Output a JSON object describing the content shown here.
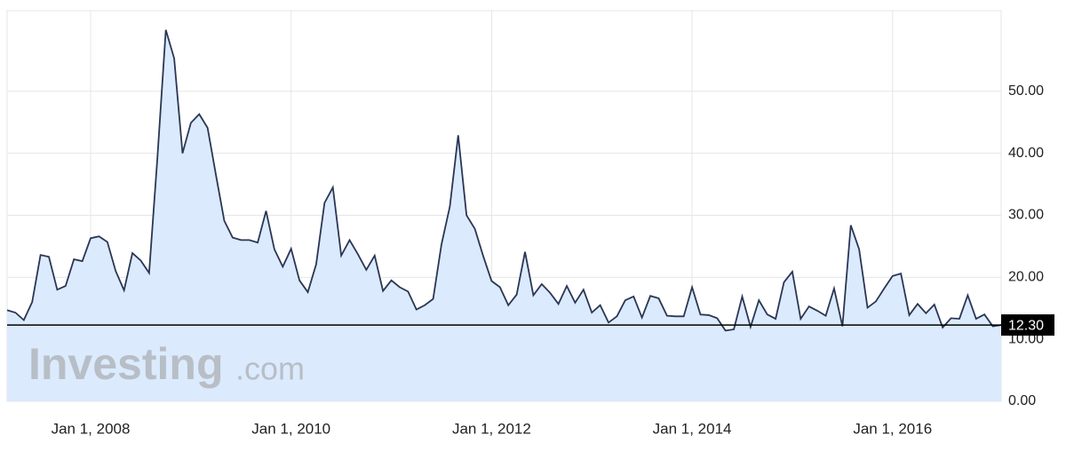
{
  "chart_data": {
    "type": "area",
    "color": "#2a3654",
    "fill": "#dbeafc",
    "grid": true,
    "watermark": [
      "Investing",
      ".com"
    ],
    "current_value": {
      "value": 12.3,
      "label": "12.30"
    },
    "xlim": [
      "2007-03",
      "2017-02"
    ],
    "xticks": [
      {
        "value": "2008-01-01",
        "label": "Jan 1, 2008"
      },
      {
        "value": "2010-01-01",
        "label": "Jan 1, 2010"
      },
      {
        "value": "2012-01-01",
        "label": "Jan 1, 2012"
      },
      {
        "value": "2014-01-01",
        "label": "Jan 1, 2014"
      },
      {
        "value": "2016-01-01",
        "label": "Jan 1, 2016"
      }
    ],
    "ylim": [
      0,
      63
    ],
    "yticks": [
      {
        "value": 0,
        "label": "0.00"
      },
      {
        "value": 10,
        "label": "10.00"
      },
      {
        "value": 20,
        "label": "20.00"
      },
      {
        "value": 30,
        "label": "30.00"
      },
      {
        "value": 40,
        "label": "40.00"
      },
      {
        "value": 50,
        "label": "50.00"
      }
    ],
    "x": [
      "2007-03",
      "2007-04",
      "2007-05",
      "2007-06",
      "2007-07",
      "2007-08",
      "2007-09",
      "2007-10",
      "2007-11",
      "2007-12",
      "2008-01",
      "2008-02",
      "2008-03",
      "2008-04",
      "2008-05",
      "2008-06",
      "2008-07",
      "2008-08",
      "2008-09",
      "2008-10",
      "2008-11",
      "2008-12",
      "2009-01",
      "2009-02",
      "2009-03",
      "2009-04",
      "2009-05",
      "2009-06",
      "2009-07",
      "2009-08",
      "2009-09",
      "2009-10",
      "2009-11",
      "2009-12",
      "2010-01",
      "2010-02",
      "2010-03",
      "2010-04",
      "2010-05",
      "2010-06",
      "2010-07",
      "2010-08",
      "2010-09",
      "2010-10",
      "2010-11",
      "2010-12",
      "2011-01",
      "2011-02",
      "2011-03",
      "2011-04",
      "2011-05",
      "2011-06",
      "2011-07",
      "2011-08",
      "2011-09",
      "2011-10",
      "2011-11",
      "2011-12",
      "2012-01",
      "2012-02",
      "2012-03",
      "2012-04",
      "2012-05",
      "2012-06",
      "2012-07",
      "2012-08",
      "2012-09",
      "2012-10",
      "2012-11",
      "2012-12",
      "2013-01",
      "2013-02",
      "2013-03",
      "2013-04",
      "2013-05",
      "2013-06",
      "2013-07",
      "2013-08",
      "2013-09",
      "2013-10",
      "2013-11",
      "2013-12",
      "2014-01",
      "2014-02",
      "2014-03",
      "2014-04",
      "2014-05",
      "2014-06",
      "2014-07",
      "2014-08",
      "2014-09",
      "2014-10",
      "2014-11",
      "2014-12",
      "2015-01",
      "2015-02",
      "2015-03",
      "2015-04",
      "2015-05",
      "2015-06",
      "2015-07",
      "2015-08",
      "2015-09",
      "2015-10",
      "2015-11",
      "2015-12",
      "2016-01",
      "2016-02",
      "2016-03",
      "2016-04",
      "2016-05",
      "2016-06",
      "2016-07",
      "2016-08",
      "2016-09",
      "2016-10",
      "2016-11",
      "2016-12",
      "2017-01",
      "2017-02"
    ],
    "values": [
      14.7,
      14.3,
      13.1,
      16,
      23.6,
      23.3,
      18,
      18.6,
      22.9,
      22.6,
      26.3,
      26.6,
      25.7,
      21,
      17.9,
      23.9,
      22.7,
      20.7,
      39.4,
      59.9,
      55.3,
      40,
      44.9,
      46.3,
      44.1,
      36.5,
      29.1,
      26.4,
      26,
      26,
      25.6,
      30.7,
      24.5,
      21.7,
      24.6,
      19.5,
      17.6,
      22.1,
      32,
      34.5,
      23.5,
      26,
      23.7,
      21.2,
      23.5,
      17.8,
      19.5,
      18.4,
      17.7,
      14.8,
      15.5,
      16.5,
      25.3,
      31.4,
      42.9,
      30,
      27.8,
      23.4,
      19.4,
      18.4,
      15.5,
      17.2,
      24.1,
      17.1,
      18.9,
      17.5,
      15.7,
      18.6,
      15.9,
      18,
      14.3,
      15.5,
      12.7,
      13.7,
      16.3,
      16.9,
      13.5,
      17,
      16.6,
      13.8,
      13.7,
      13.7,
      18.4,
      14,
      13.9,
      13.4,
      11.4,
      11.6,
      16.9,
      12,
      16.3,
      14,
      13.3,
      19.2,
      20.9,
      13.3,
      15.3,
      14.6,
      13.8,
      18.2,
      12.1,
      28.4,
      24.5,
      15.1,
      16.1,
      18.2,
      20.2,
      20.6,
      13.9,
      15.7,
      14.2,
      15.6,
      11.9,
      13.4,
      13.3,
      17.1,
      13.3,
      14,
      12.1,
      12.3
    ]
  }
}
